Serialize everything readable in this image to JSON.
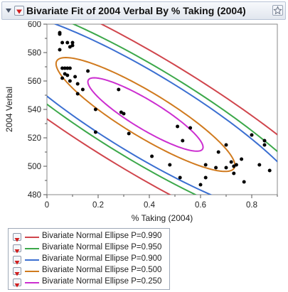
{
  "header": {
    "title": "Bivariate Fit of 2004 Verbal By % Taking (2004)"
  },
  "chart_data": {
    "type": "scatter",
    "xlabel": "% Taking (2004)",
    "ylabel": "2004 Verbal",
    "xlim": [
      0,
      0.9
    ],
    "ylim": [
      480,
      600
    ],
    "xticks": [
      "0",
      "0.2",
      "0.4",
      "0.6",
      "0.8"
    ],
    "xtick_values": [
      0,
      0.2,
      0.4,
      0.6,
      0.8
    ],
    "yticks": [
      "480",
      "500",
      "520",
      "540",
      "560",
      "580",
      "600"
    ],
    "ytick_values": [
      480,
      500,
      520,
      540,
      560,
      580,
      600
    ],
    "grid": false,
    "points": [
      {
        "x": 0.05,
        "y": 594
      },
      {
        "x": 0.05,
        "y": 593
      },
      {
        "x": 0.05,
        "y": 582
      },
      {
        "x": 0.06,
        "y": 587
      },
      {
        "x": 0.06,
        "y": 569
      },
      {
        "x": 0.06,
        "y": 562
      },
      {
        "x": 0.07,
        "y": 569
      },
      {
        "x": 0.07,
        "y": 565
      },
      {
        "x": 0.08,
        "y": 587
      },
      {
        "x": 0.08,
        "y": 569
      },
      {
        "x": 0.08,
        "y": 564
      },
      {
        "x": 0.09,
        "y": 584
      },
      {
        "x": 0.09,
        "y": 569
      },
      {
        "x": 0.09,
        "y": 560
      },
      {
        "x": 0.1,
        "y": 587
      },
      {
        "x": 0.1,
        "y": 585
      },
      {
        "x": 0.11,
        "y": 563
      },
      {
        "x": 0.12,
        "y": 558
      },
      {
        "x": 0.12,
        "y": 551
      },
      {
        "x": 0.14,
        "y": 554
      },
      {
        "x": 0.16,
        "y": 567
      },
      {
        "x": 0.19,
        "y": 540
      },
      {
        "x": 0.19,
        "y": 524
      },
      {
        "x": 0.28,
        "y": 554
      },
      {
        "x": 0.29,
        "y": 538
      },
      {
        "x": 0.3,
        "y": 537
      },
      {
        "x": 0.32,
        "y": 523
      },
      {
        "x": 0.41,
        "y": 507
      },
      {
        "x": 0.48,
        "y": 501
      },
      {
        "x": 0.51,
        "y": 528
      },
      {
        "x": 0.52,
        "y": 492
      },
      {
        "x": 0.53,
        "y": 518
      },
      {
        "x": 0.56,
        "y": 527
      },
      {
        "x": 0.6,
        "y": 487
      },
      {
        "x": 0.62,
        "y": 492
      },
      {
        "x": 0.62,
        "y": 501
      },
      {
        "x": 0.66,
        "y": 499
      },
      {
        "x": 0.67,
        "y": 510
      },
      {
        "x": 0.7,
        "y": 515
      },
      {
        "x": 0.7,
        "y": 499
      },
      {
        "x": 0.72,
        "y": 503
      },
      {
        "x": 0.73,
        "y": 495
      },
      {
        "x": 0.73,
        "y": 500
      },
      {
        "x": 0.74,
        "y": 501
      },
      {
        "x": 0.76,
        "y": 505
      },
      {
        "x": 0.77,
        "y": 489
      },
      {
        "x": 0.8,
        "y": 522
      },
      {
        "x": 0.83,
        "y": 501
      },
      {
        "x": 0.85,
        "y": 518
      },
      {
        "x": 0.85,
        "y": 515
      },
      {
        "x": 0.87,
        "y": 497
      }
    ],
    "ellipses": [
      {
        "name": "Bivariate Normal Ellipse P=0.990",
        "probability": 0.99,
        "color": "#d0454c"
      },
      {
        "name": "Bivariate Normal Ellipse P=0.950",
        "probability": 0.95,
        "color": "#3ca84a"
      },
      {
        "name": "Bivariate Normal Ellipse P=0.900",
        "probability": 0.9,
        "color": "#3b6fd1"
      },
      {
        "name": "Bivariate Normal Ellipse P=0.500",
        "probability": 0.5,
        "color": "#d07a1e"
      },
      {
        "name": "Bivariate Normal Ellipse P=0.250",
        "probability": 0.25,
        "color": "#cc2ed0"
      }
    ],
    "ellipse_params": {
      "center": [
        0.4,
        530
      ],
      "major_dir": [
        0.00472,
        -0.99999
      ],
      "major_sd_per_unit": 0.0,
      "note_free": true
    }
  }
}
